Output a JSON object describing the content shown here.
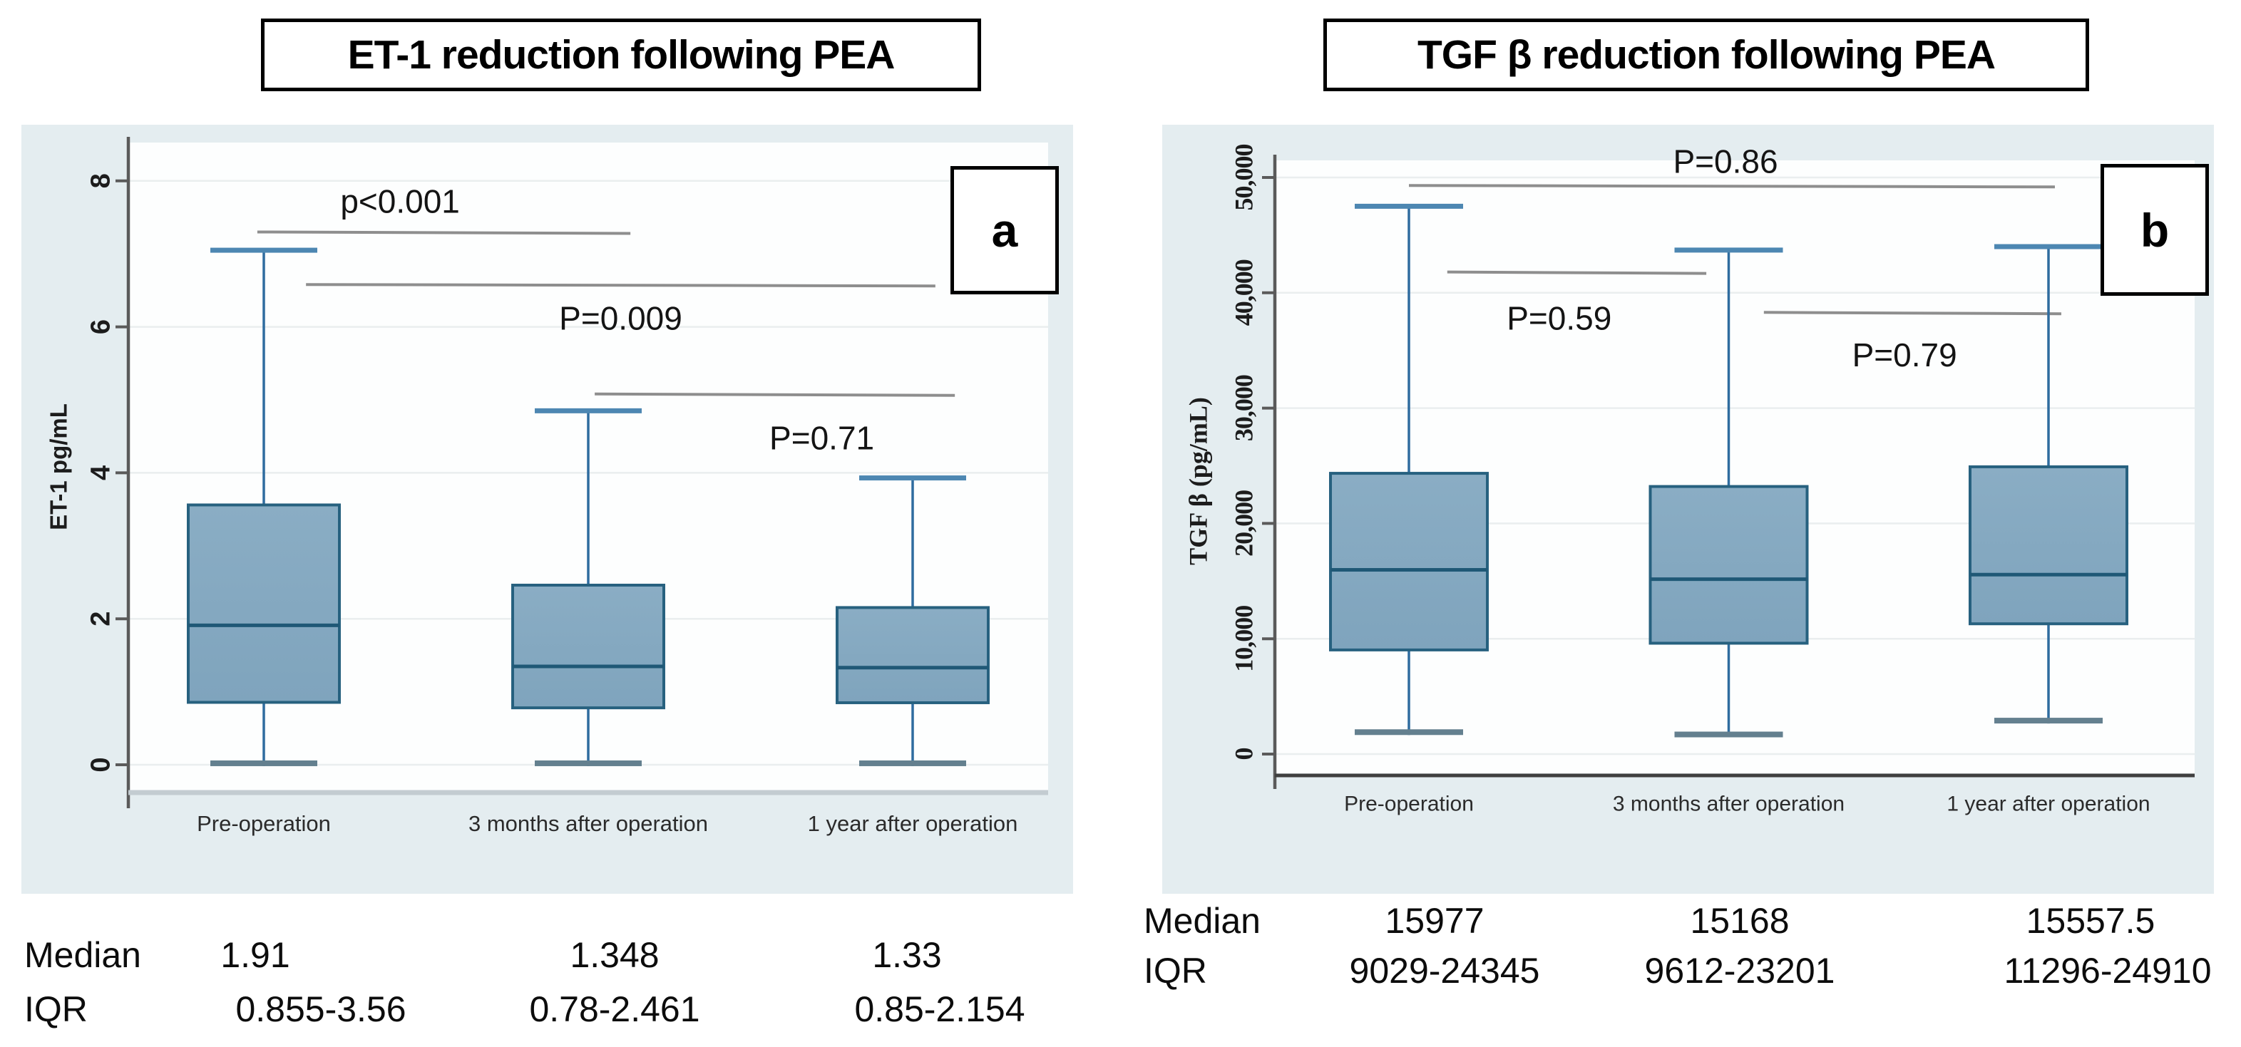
{
  "chart_data": [
    {
      "type": "box",
      "panel_label": "a",
      "title": "ET-1 reduction following PEA",
      "ylabel": "ET-1 pg/mL",
      "ylim": [
        -0.4,
        8.55
      ],
      "yticks": [
        0,
        2,
        4,
        6,
        8
      ],
      "ytick_labels": [
        "0",
        "2",
        "4",
        "6",
        "8"
      ],
      "grid": true,
      "categories": [
        "Pre-operation",
        "3 months  after operation",
        "1 year after operation"
      ],
      "boxes": [
        {
          "whisker_low": 0.02,
          "q1": 0.855,
          "median": 1.91,
          "q3": 3.56,
          "whisker_high": 7.05
        },
        {
          "whisker_low": 0.02,
          "q1": 0.78,
          "median": 1.348,
          "q3": 2.461,
          "whisker_high": 4.85
        },
        {
          "whisker_low": 0.02,
          "q1": 0.85,
          "median": 1.33,
          "q3": 2.154,
          "whisker_high": 3.93
        }
      ],
      "p_annotations": [
        {
          "label": "p<0.001",
          "line_y": 7.3,
          "x_from": -0.02,
          "x_to": 1.13,
          "label_x": 0.42,
          "label_y": 7.72
        },
        {
          "label": "P=0.009",
          "line_y": 6.58,
          "x_from": 0.13,
          "x_to": 2.07,
          "label_x": 1.1,
          "label_y": 6.12
        },
        {
          "label": "P=0.71",
          "line_y": 5.08,
          "x_from": 1.02,
          "x_to": 2.13,
          "label_x": 1.72,
          "label_y": 4.48
        }
      ],
      "stats": {
        "median_label": "Median",
        "iqr_label": "IQR",
        "medians": [
          "1.91",
          "1.348",
          "1.33"
        ],
        "iqrs": [
          "0.855-3.56",
          "0.78-2.461",
          "0.85-2.154"
        ]
      },
      "axis_font": "sans"
    },
    {
      "type": "box",
      "panel_label": "b",
      "title": "TGF β reduction following PEA",
      "ylabel": "TGF β (pg/mL)",
      "ylim": [
        -1700,
        51500
      ],
      "yticks": [
        0,
        10000,
        20000,
        30000,
        40000,
        50000
      ],
      "ytick_labels": [
        "0",
        "10,000",
        "20,000",
        "30,000",
        "40,000",
        "50,000"
      ],
      "grid": true,
      "categories": [
        "Pre-operation",
        "3 months  after operation",
        "1 year after operation"
      ],
      "boxes": [
        {
          "whisker_low": 1900,
          "q1": 9029,
          "median": 15977,
          "q3": 24345,
          "whisker_high": 47500
        },
        {
          "whisker_low": 1700,
          "q1": 9612,
          "median": 15168,
          "q3": 23201,
          "whisker_high": 43700
        },
        {
          "whisker_low": 2900,
          "q1": 11296,
          "median": 15557.5,
          "q3": 24910,
          "whisker_high": 44000
        }
      ],
      "p_annotations": [
        {
          "label": "P=0.86",
          "line_y": 49300,
          "x_from": 0.0,
          "x_to": 2.02,
          "label_x": 0.99,
          "label_y": 51400
        },
        {
          "label": "P=0.59",
          "line_y": 41800,
          "x_from": 0.12,
          "x_to": 0.93,
          "label_x": 0.47,
          "label_y": 37800
        },
        {
          "label": "P=0.79",
          "line_y": 38300,
          "x_from": 1.11,
          "x_to": 2.04,
          "label_x": 1.55,
          "label_y": 34600
        }
      ],
      "stats": {
        "median_label": "Median",
        "iqr_label": "IQR",
        "medians": [
          "15977",
          "15168",
          "15557.5"
        ],
        "iqrs": [
          "9029-24345",
          "9612-23201",
          "11296-24910"
        ]
      },
      "axis_font": "serif"
    }
  ],
  "colors": {
    "figure_bg": "#e4edf0",
    "plot_bg": "#fdfefe",
    "grid": "#eaeeef",
    "axis": "#5a5a5a",
    "x_axis_light": "#c3ccd1",
    "x_axis_dark": "#3f3f3f",
    "box_fill": "#7fa4bd",
    "box_fill_top": "#8aadc4",
    "box_border": "#27617f",
    "median_line": "#1f5876",
    "whisker": "#2f6c9f",
    "cap_top": "#4d87b2",
    "cap_bottom": "#64808f",
    "p_line": "#8e8e8e",
    "text": "#141414",
    "tick_text": "#1c1c1c",
    "xlabel_text": "#2b2b2b"
  }
}
